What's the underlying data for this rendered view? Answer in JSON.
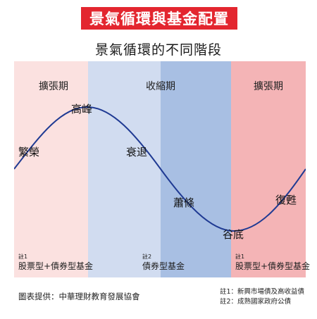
{
  "banner": {
    "title": "景氣循環與基金配置",
    "color": "#e3262f"
  },
  "subtitle": "景氣循環的不同階段",
  "phases": [
    {
      "label": "擴張期",
      "color": "#fbe1e0"
    },
    {
      "label": "收縮期",
      "color": "#d1dcf0",
      "dark_color": "#a8bfe3"
    },
    {
      "label": "擴張期",
      "color": "#f4b4b6"
    }
  ],
  "points": {
    "boom": "繁榮",
    "peak": "高峰",
    "recession": "衰退",
    "depression": "蕭條",
    "trough": "谷底",
    "recovery": "復甦"
  },
  "notes": [
    {
      "tag": "註1",
      "text": "股票型+債券型基金"
    },
    {
      "tag": "註2",
      "text": "債券型基金"
    },
    {
      "tag": "註1",
      "text": "股票型+債券型基金"
    }
  ],
  "credit": "圖表提供：中華理財教育發展協會",
  "footnotes": [
    "註1：新興市場債及高收益債",
    "註2：成熟國家政府公債"
  ],
  "curve_color": "#1f3a93"
}
